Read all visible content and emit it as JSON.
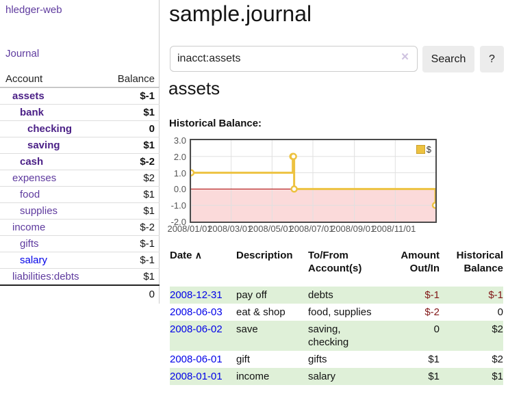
{
  "colors": {
    "accent_purple": "#5e3a9e",
    "bold_account_purple": "#4a1f86",
    "link_blue": "#0000e8",
    "negative_strong": "#811717",
    "negative_soft": "#c4716c",
    "row_stripe_green": "#dff0d8",
    "chart_gold": "#edc240",
    "chart_negative_fill": "#fbdada",
    "chart_zero_line": "#aa0000"
  },
  "sidebar": {
    "app_title": "hledger-web",
    "nav": {
      "journal": "Journal"
    },
    "table": {
      "account_header": "Account",
      "balance_header": "Balance",
      "accounts": [
        {
          "name": "assets",
          "balance": "$-1"
        },
        {
          "name": "bank",
          "balance": "$1"
        },
        {
          "name": "checking",
          "balance": "0"
        },
        {
          "name": "saving",
          "balance": "$1"
        },
        {
          "name": "cash",
          "balance": "$-2"
        },
        {
          "name": "expenses",
          "balance": "$2"
        },
        {
          "name": "food",
          "balance": "$1"
        },
        {
          "name": "supplies",
          "balance": "$1"
        },
        {
          "name": "income",
          "balance": "$-2"
        },
        {
          "name": "gifts",
          "balance": "$-1"
        },
        {
          "name": "salary",
          "balance": "$-1"
        },
        {
          "name": "liabilities:debts",
          "balance": "$1"
        }
      ],
      "total": "0"
    }
  },
  "main": {
    "title": "sample.journal",
    "search": {
      "value": "inacct:assets",
      "clear_icon": "×",
      "search_button": "Search",
      "help_button": "?"
    },
    "heading": "assets",
    "chart_title": "Historical Balance:"
  },
  "chart_data": {
    "type": "line",
    "step": true,
    "title": "Historical Balance",
    "legend": [
      {
        "label": "$",
        "color": "#edc240"
      }
    ],
    "legend_position": "top-right",
    "grid": true,
    "x_range": [
      "2008-01-01",
      "2008-12-31"
    ],
    "ylim": [
      -2,
      3
    ],
    "ytick_labels": [
      "3.0",
      "2.0",
      "1.0",
      "0.0",
      "-1.0",
      "-2.0"
    ],
    "xtick_labels": [
      "2008/01/01",
      "2008/03/01",
      "2008/05/01",
      "2008/07/01",
      "2008/09/01",
      "2008/11/01"
    ],
    "series": [
      {
        "name": "$",
        "color": "#edc240",
        "points": [
          [
            "2008-01-01",
            1
          ],
          [
            "2008-06-01",
            2
          ],
          [
            "2008-06-02",
            2
          ],
          [
            "2008-06-03",
            0
          ],
          [
            "2008-12-31",
            -1
          ]
        ]
      }
    ]
  },
  "register": {
    "headers": {
      "date": "Date",
      "sort_icon": "∧",
      "description": "Description",
      "accounts": "To/From Account(s)",
      "amount": "Amount Out/In",
      "balance": "Historical Balance"
    },
    "rows": [
      {
        "date": "2008-12-31",
        "description": "pay off",
        "accounts": "debts",
        "amount": "$-1",
        "balance": "$-1"
      },
      {
        "date": "2008-06-03",
        "description": "eat & shop",
        "accounts": "food, supplies",
        "amount": "$-2",
        "balance": "0"
      },
      {
        "date": "2008-06-02",
        "description": "save",
        "accounts": "saving, checking",
        "amount": "0",
        "balance": "$2"
      },
      {
        "date": "2008-06-01",
        "description": "gift",
        "accounts": "gifts",
        "amount": "$1",
        "balance": "$2"
      },
      {
        "date": "2008-01-01",
        "description": "income",
        "accounts": "salary",
        "amount": "$1",
        "balance": "$1"
      }
    ]
  }
}
